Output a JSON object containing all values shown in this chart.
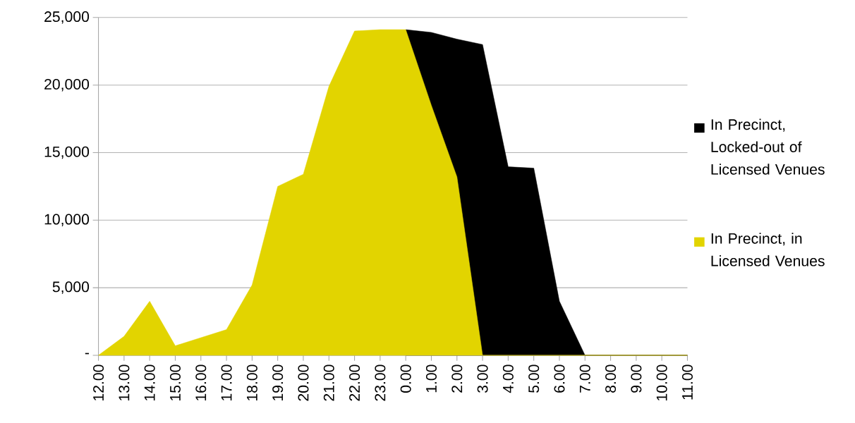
{
  "chart_data": {
    "type": "area",
    "categories": [
      "12.00",
      "13.00",
      "14.00",
      "15.00",
      "16.00",
      "17.00",
      "18.00",
      "19.00",
      "20.00",
      "21.00",
      "22.00",
      "23.00",
      "0.00",
      "1.00",
      "2.00",
      "3.00",
      "4.00",
      "5.00",
      "6.00",
      "7.00",
      "8.00",
      "9.00",
      "10.00",
      "11.00"
    ],
    "series": [
      {
        "name": "In Precinct, Locked-out of Licensed Venues",
        "color": "#000000",
        "values": [
          null,
          null,
          null,
          null,
          null,
          null,
          null,
          null,
          null,
          null,
          null,
          null,
          24100,
          23900,
          23400,
          23000,
          13950,
          13850,
          4000,
          0,
          0,
          0,
          0,
          0
        ]
      },
      {
        "name": "In Precinct, in Licensed Venues",
        "color": "#e2d400",
        "values": [
          0,
          1400,
          4000,
          700,
          1300,
          1900,
          5200,
          12500,
          13400,
          19900,
          24000,
          24100,
          24100,
          18500,
          13200,
          0,
          0,
          0,
          0,
          0,
          0,
          0,
          0,
          0
        ]
      }
    ],
    "ylim": [
      0,
      25000
    ],
    "yticks": [
      {
        "value": 0,
        "label": "-"
      },
      {
        "value": 5000,
        "label": "5,000"
      },
      {
        "value": 10000,
        "label": "10,000"
      },
      {
        "value": 15000,
        "label": "15,000"
      },
      {
        "value": 20000,
        "label": "20,000"
      },
      {
        "value": 25000,
        "label": "25,000"
      }
    ],
    "grid": "y",
    "legend": "right"
  }
}
